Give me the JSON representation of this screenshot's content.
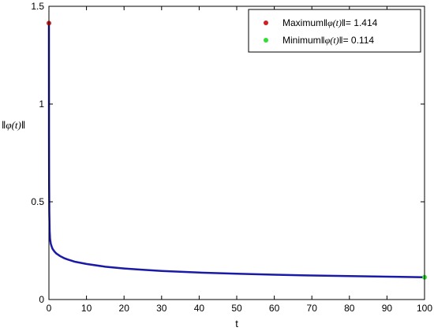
{
  "chart_data": {
    "type": "line",
    "xlabel": "t",
    "ylabel": {
      "prefix": "‖",
      "symbol": "φ",
      "arg": "(t)",
      "suffix": "‖"
    },
    "xlim": [
      0,
      100
    ],
    "ylim": [
      0,
      1.5
    ],
    "xticks": [
      0,
      10,
      20,
      30,
      40,
      50,
      60,
      70,
      80,
      90,
      100
    ],
    "xtick_labels": [
      "0",
      "10",
      "20",
      "30",
      "40",
      "50",
      "60",
      "70",
      "80",
      "90",
      "100"
    ],
    "yticks": [
      0,
      0.5,
      1,
      1.5
    ],
    "ytick_labels": [
      "0",
      "0.5",
      "1",
      "1.5"
    ],
    "grid": false,
    "legend_position": "top-right",
    "series": [
      {
        "color": "#1a1aa6",
        "x": [
          0,
          0.02,
          0.05,
          0.1,
          0.2,
          0.3,
          0.5,
          0.75,
          1,
          1.5,
          2,
          3,
          4,
          5,
          7,
          10,
          15,
          20,
          25,
          30,
          40,
          50,
          60,
          70,
          80,
          90,
          100
        ],
        "y": [
          1.414,
          0.85,
          0.6,
          0.45,
          0.35,
          0.31,
          0.285,
          0.27,
          0.258,
          0.245,
          0.235,
          0.222,
          0.212,
          0.205,
          0.193,
          0.182,
          0.168,
          0.159,
          0.152,
          0.146,
          0.138,
          0.132,
          0.127,
          0.123,
          0.12,
          0.117,
          0.114
        ]
      }
    ],
    "markers": [
      {
        "name_prefix": "Maximum",
        "value_text": "= 1.414",
        "x": 0,
        "y": 1.414,
        "color": "#cc2222"
      },
      {
        "name_prefix": "Minimum",
        "value_text": "= 0.114",
        "x": 100,
        "y": 0.114,
        "color": "#33dd33"
      }
    ],
    "norm_label": {
      "prefix": "‖",
      "symbol": "φ",
      "arg": "(t)",
      "suffix": "‖"
    }
  }
}
